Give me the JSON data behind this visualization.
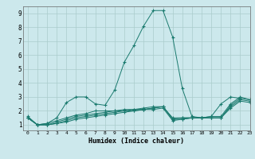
{
  "xlabel": "Humidex (Indice chaleur)",
  "bg_color": "#cce8ec",
  "grid_color": "#aacccc",
  "line_color": "#1a7a6e",
  "xlim": [
    -0.5,
    23
  ],
  "ylim": [
    0.6,
    9.5
  ],
  "x_ticks": [
    0,
    1,
    2,
    3,
    4,
    5,
    6,
    7,
    8,
    9,
    10,
    11,
    12,
    13,
    14,
    15,
    16,
    17,
    18,
    19,
    20,
    21,
    22,
    23
  ],
  "y_ticks": [
    1,
    2,
    3,
    4,
    5,
    6,
    7,
    8,
    9
  ],
  "series": [
    [
      1.6,
      1.0,
      1.1,
      1.5,
      2.6,
      3.0,
      3.0,
      2.5,
      2.4,
      3.5,
      5.5,
      6.7,
      8.1,
      9.2,
      9.2,
      7.3,
      3.6,
      1.6,
      1.5,
      1.6,
      2.5,
      3.0,
      2.9,
      null
    ],
    [
      1.5,
      1.0,
      1.1,
      1.3,
      1.5,
      1.7,
      1.8,
      2.0,
      2.0,
      2.0,
      2.1,
      2.1,
      2.2,
      2.3,
      2.3,
      1.5,
      1.5,
      1.5,
      1.5,
      1.6,
      1.6,
      2.5,
      3.0,
      2.8
    ],
    [
      1.5,
      1.0,
      1.0,
      1.2,
      1.4,
      1.6,
      1.7,
      1.8,
      1.9,
      2.0,
      2.0,
      2.1,
      2.1,
      2.2,
      2.3,
      1.4,
      1.5,
      1.5,
      1.5,
      1.5,
      1.5,
      2.4,
      2.9,
      2.8
    ],
    [
      1.5,
      1.0,
      1.0,
      1.1,
      1.3,
      1.5,
      1.6,
      1.7,
      1.8,
      1.9,
      2.0,
      2.0,
      2.1,
      2.2,
      2.3,
      1.4,
      1.4,
      1.5,
      1.5,
      1.5,
      1.5,
      2.3,
      2.8,
      2.7
    ],
    [
      1.5,
      1.0,
      1.0,
      1.1,
      1.2,
      1.4,
      1.5,
      1.6,
      1.7,
      1.8,
      1.9,
      2.0,
      2.1,
      2.1,
      2.2,
      1.3,
      1.4,
      1.5,
      1.5,
      1.5,
      1.5,
      2.2,
      2.7,
      2.6
    ]
  ]
}
